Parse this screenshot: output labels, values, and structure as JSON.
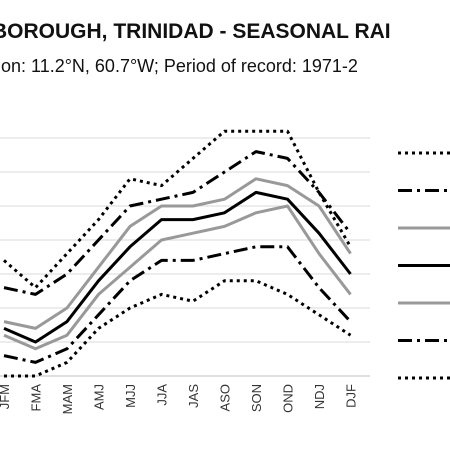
{
  "header": {
    "title": "BOROUGH, TRINIDAD - SEASONAL RAI",
    "subtitle": "tion: 11.2°N, 60.7°W; Period of record: 1971-2"
  },
  "chart_data": {
    "type": "line",
    "title": "BOROUGH, TRINIDAD - SEASONAL RAI",
    "subtitle": "tion: 11.2°N, 60.7°W; Period of record: 1971-2",
    "categories": [
      "JFM",
      "FMA",
      "MAM",
      "AMJ",
      "MJJ",
      "JJA",
      "JAS",
      "ASO",
      "SON",
      "OND",
      "NDJ",
      "DJF"
    ],
    "xlabel": "",
    "ylabel": "",
    "grid": true,
    "legend_position": "right",
    "series": [
      {
        "style": "dotted",
        "color": "#000000",
        "values": [
          8.7,
          8.3,
          8.8,
          9.3,
          9.9,
          9.8,
          10.2,
          10.6,
          10.6,
          10.6,
          9.7,
          8.9
        ]
      },
      {
        "style": "dash-dot",
        "color": "#000000",
        "values": [
          8.3,
          8.2,
          8.5,
          9.0,
          9.5,
          9.6,
          9.7,
          10.0,
          10.3,
          10.2,
          9.7,
          9.1
        ]
      },
      {
        "style": "solid",
        "color": "#999999",
        "values": [
          7.8,
          7.7,
          8.0,
          8.6,
          9.2,
          9.5,
          9.5,
          9.6,
          9.9,
          9.8,
          9.5,
          8.8
        ]
      },
      {
        "style": "solid",
        "color": "#000000",
        "values": [
          7.7,
          7.5,
          7.8,
          8.4,
          8.9,
          9.3,
          9.3,
          9.4,
          9.7,
          9.6,
          9.1,
          8.5
        ]
      },
      {
        "style": "solid",
        "color": "#999999",
        "values": [
          7.6,
          7.4,
          7.6,
          8.2,
          8.6,
          9.0,
          9.1,
          9.2,
          9.4,
          9.5,
          8.8,
          8.2
        ]
      },
      {
        "style": "dash-dot",
        "color": "#000000",
        "values": [
          7.3,
          7.2,
          7.4,
          7.9,
          8.4,
          8.7,
          8.7,
          8.8,
          8.9,
          8.9,
          8.3,
          7.8
        ]
      },
      {
        "style": "dotted",
        "color": "#000000",
        "values": [
          7.0,
          7.0,
          7.2,
          7.7,
          8.0,
          8.2,
          8.1,
          8.4,
          8.4,
          8.2,
          7.9,
          7.6
        ]
      }
    ],
    "ylim": [
      7,
      11
    ]
  }
}
